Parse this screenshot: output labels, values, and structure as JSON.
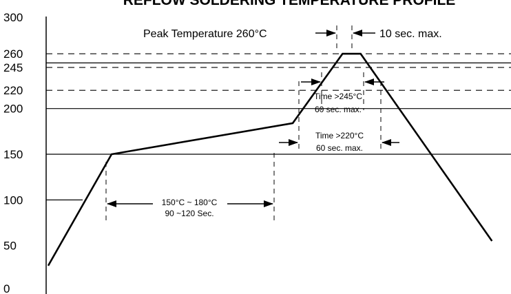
{
  "chart_data": {
    "type": "line",
    "title": "REFLOW SOLDERING TEMPERATURE PROFILE",
    "xlabel": "",
    "ylabel": "",
    "ylim": [
      0,
      300
    ],
    "y_ticks": [
      0,
      50,
      100,
      150,
      200,
      220,
      245,
      260,
      300
    ],
    "grid": {
      "solid": [
        100,
        150,
        200,
        250
      ],
      "dashed": [
        220,
        245,
        260
      ]
    },
    "series": [
      {
        "points": [
          [
            0,
            28
          ],
          [
            70,
            150
          ],
          [
            270,
            184
          ],
          [
            325,
            260
          ],
          [
            345,
            260
          ],
          [
            490,
            55
          ]
        ]
      }
    ],
    "annotations": {
      "peak_label": "Peak Temperature 260°C",
      "peak_time_label": "10 sec. max.",
      "t245_line1": "Time >245°C",
      "t245_line2": "60 sec. max.",
      "t220_line1": "Time >220°C",
      "t220_line2": "60 sec. max.",
      "soak_line1": "150°C ~ 180°C",
      "soak_line2": "90 ~120 Sec."
    }
  }
}
